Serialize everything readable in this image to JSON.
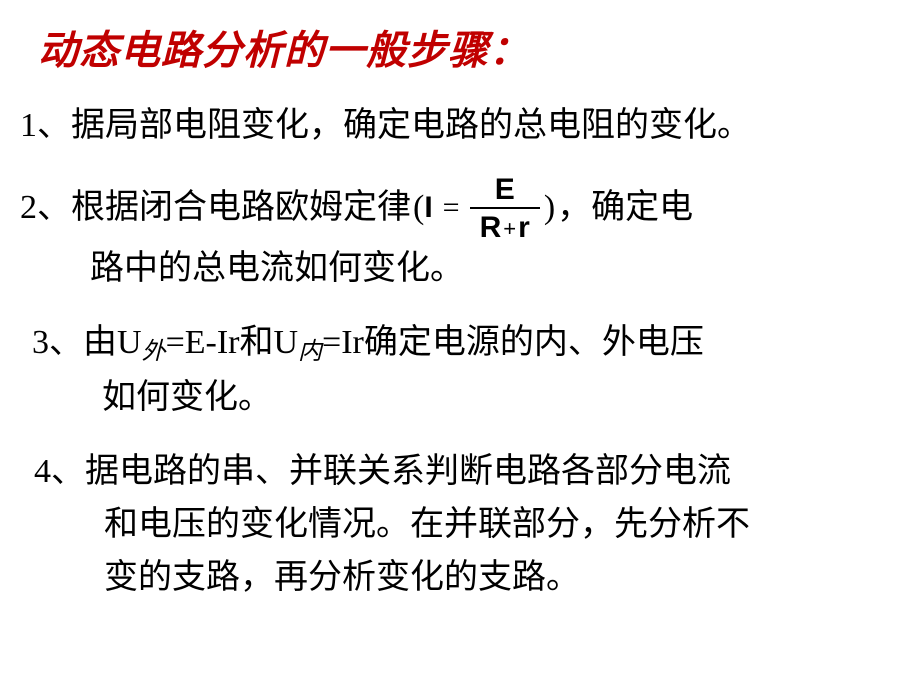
{
  "title": "动态电路分析的一般步骤：",
  "title_color": "#c00000",
  "background_color": "#ffffff",
  "text_color": "#000000",
  "font_body": "SimSun",
  "font_title": "KaiTi",
  "title_fontsize_pt": 30,
  "body_fontsize_pt": 26,
  "formula_font": "Arial",
  "steps": {
    "s1": "1、据局部电阻变化，确定电路的总电阻的变化。",
    "s2_a": "2、根据闭合电路欧姆定律",
    "s2_b": "，确定电",
    "s2_c": "路中的总电流如何变化。",
    "s3_a": "3、由U",
    "s3_sub1": "外",
    "s3_b": "=E-Ir和U",
    "s3_sub2": "内",
    "s3_c": "=Ir确定电源的内、外电压",
    "s3_d": "如何变化。",
    "s4_a": "4、据电路的串、并联关系判断电路各部分电流",
    "s4_b": "和电压的变化情况。在并联部分，先分析不",
    "s4_c": "变的支路，再分析变化的支路。"
  },
  "formula": {
    "open_paren": "(",
    "I": "I",
    "eq": "=",
    "numerator": "E",
    "den_R": "R",
    "den_plus": "+",
    "den_r": "r",
    "close_paren": ")"
  }
}
